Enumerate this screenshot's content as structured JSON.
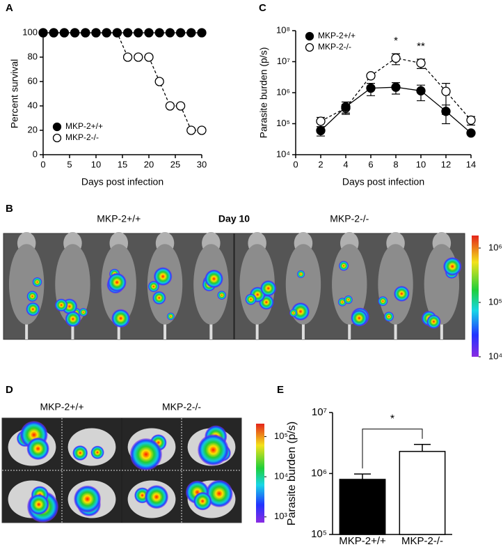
{
  "chart_data": [
    {
      "label": "A",
      "type": "line",
      "xlabel": "Days post infection",
      "ylabel": "Percent survival",
      "x": [
        0,
        2,
        4,
        6,
        8,
        10,
        12,
        14,
        16,
        18,
        20,
        22,
        24,
        26,
        28,
        30
      ],
      "xlim": [
        0,
        30
      ],
      "xticks": [
        0,
        5,
        10,
        15,
        20,
        25,
        30
      ],
      "ylim": [
        0,
        100
      ],
      "yticks": [
        0,
        20,
        40,
        60,
        80,
        100
      ],
      "legend": "lower left",
      "series": [
        {
          "name": "MKP-2+/+",
          "color": "#000000",
          "marker": "filled",
          "linestyle": "solid",
          "values": [
            100,
            100,
            100,
            100,
            100,
            100,
            100,
            100,
            100,
            100,
            100,
            100,
            100,
            100,
            100,
            100
          ]
        },
        {
          "name": "MKP-2-/-",
          "color": "#000000",
          "marker": "open",
          "linestyle": "dashed",
          "values": [
            100,
            100,
            100,
            100,
            100,
            100,
            100,
            100,
            80,
            80,
            80,
            60,
            40,
            40,
            20,
            20
          ]
        }
      ]
    },
    {
      "label": "C",
      "type": "line",
      "log_y": true,
      "xlabel": "Days post infection",
      "ylabel": "Parasite burden (p/s)",
      "x": [
        2,
        4,
        6,
        8,
        10,
        12,
        14
      ],
      "xlim": [
        0,
        14
      ],
      "xticks": [
        0,
        2,
        4,
        6,
        8,
        10,
        12,
        14
      ],
      "ylim": [
        10000,
        100000000
      ],
      "yticks": [
        {
          "value": 10000,
          "label": "10⁴"
        },
        {
          "value": 100000,
          "label": "10⁵"
        },
        {
          "value": 1000000,
          "label": "10⁶"
        },
        {
          "value": 10000000,
          "label": "10⁷"
        },
        {
          "value": 100000000,
          "label": "10⁸"
        }
      ],
      "legend": "upper left",
      "series": [
        {
          "name": "MKP-2+/+",
          "color": "#000000",
          "marker": "filled",
          "linestyle": "solid",
          "values": [
            60000,
            350000,
            1400000,
            1500000,
            1150000,
            250000,
            50000
          ],
          "errors": [
            20000,
            150000,
            600000,
            600000,
            600000,
            150000,
            5000
          ]
        },
        {
          "name": "MKP-2-/-",
          "color": "#000000",
          "marker": "open",
          "linestyle": "dashed",
          "values": [
            120000,
            320000,
            3500000,
            13000000,
            9000000,
            1100000,
            130000
          ],
          "errors": [
            40000,
            100000,
            500000,
            5000000,
            3000000,
            900000,
            40000
          ]
        }
      ],
      "annotations": [
        {
          "x": 8,
          "text": "*"
        },
        {
          "x": 10,
          "text": "**"
        }
      ]
    },
    {
      "label": "B",
      "type": "image",
      "title": "Day 10",
      "group_labels": [
        "MKP-2+/+",
        "MKP-2-/-"
      ],
      "colorbar": {
        "lim": [
          10000,
          1700000
        ],
        "ticks": [
          {
            "value": 10000,
            "label": "10⁴"
          },
          {
            "value": 100000,
            "label": "10⁵"
          },
          {
            "value": 1000000,
            "label": "10⁶"
          }
        ]
      }
    },
    {
      "label": "D",
      "type": "image",
      "group_labels": [
        "MKP-2+/+",
        "MKP-2-/-"
      ],
      "colorbar": {
        "lim": [
          720,
          210000
        ],
        "ticks": [
          {
            "value": 1000,
            "label": "10³"
          },
          {
            "value": 10000,
            "label": "10⁴"
          },
          {
            "value": 100000,
            "label": "10⁵"
          }
        ]
      }
    },
    {
      "label": "E",
      "type": "bar",
      "log_y": true,
      "ylabel": "Parasite burden (p/s)",
      "categories": [
        "MKP-2+/+",
        "MKP-2-/-"
      ],
      "values": [
        800000,
        2300000
      ],
      "errors": [
        180000,
        700000
      ],
      "colors": [
        "#000000",
        "#ffffff"
      ],
      "ylim": [
        100000,
        10000000
      ],
      "yticks": [
        {
          "value": 100000,
          "label": "10⁵"
        },
        {
          "value": 1000000,
          "label": "10⁶"
        },
        {
          "value": 10000000,
          "label": "10⁷"
        }
      ],
      "annotations": [
        {
          "text": "*"
        }
      ]
    }
  ]
}
